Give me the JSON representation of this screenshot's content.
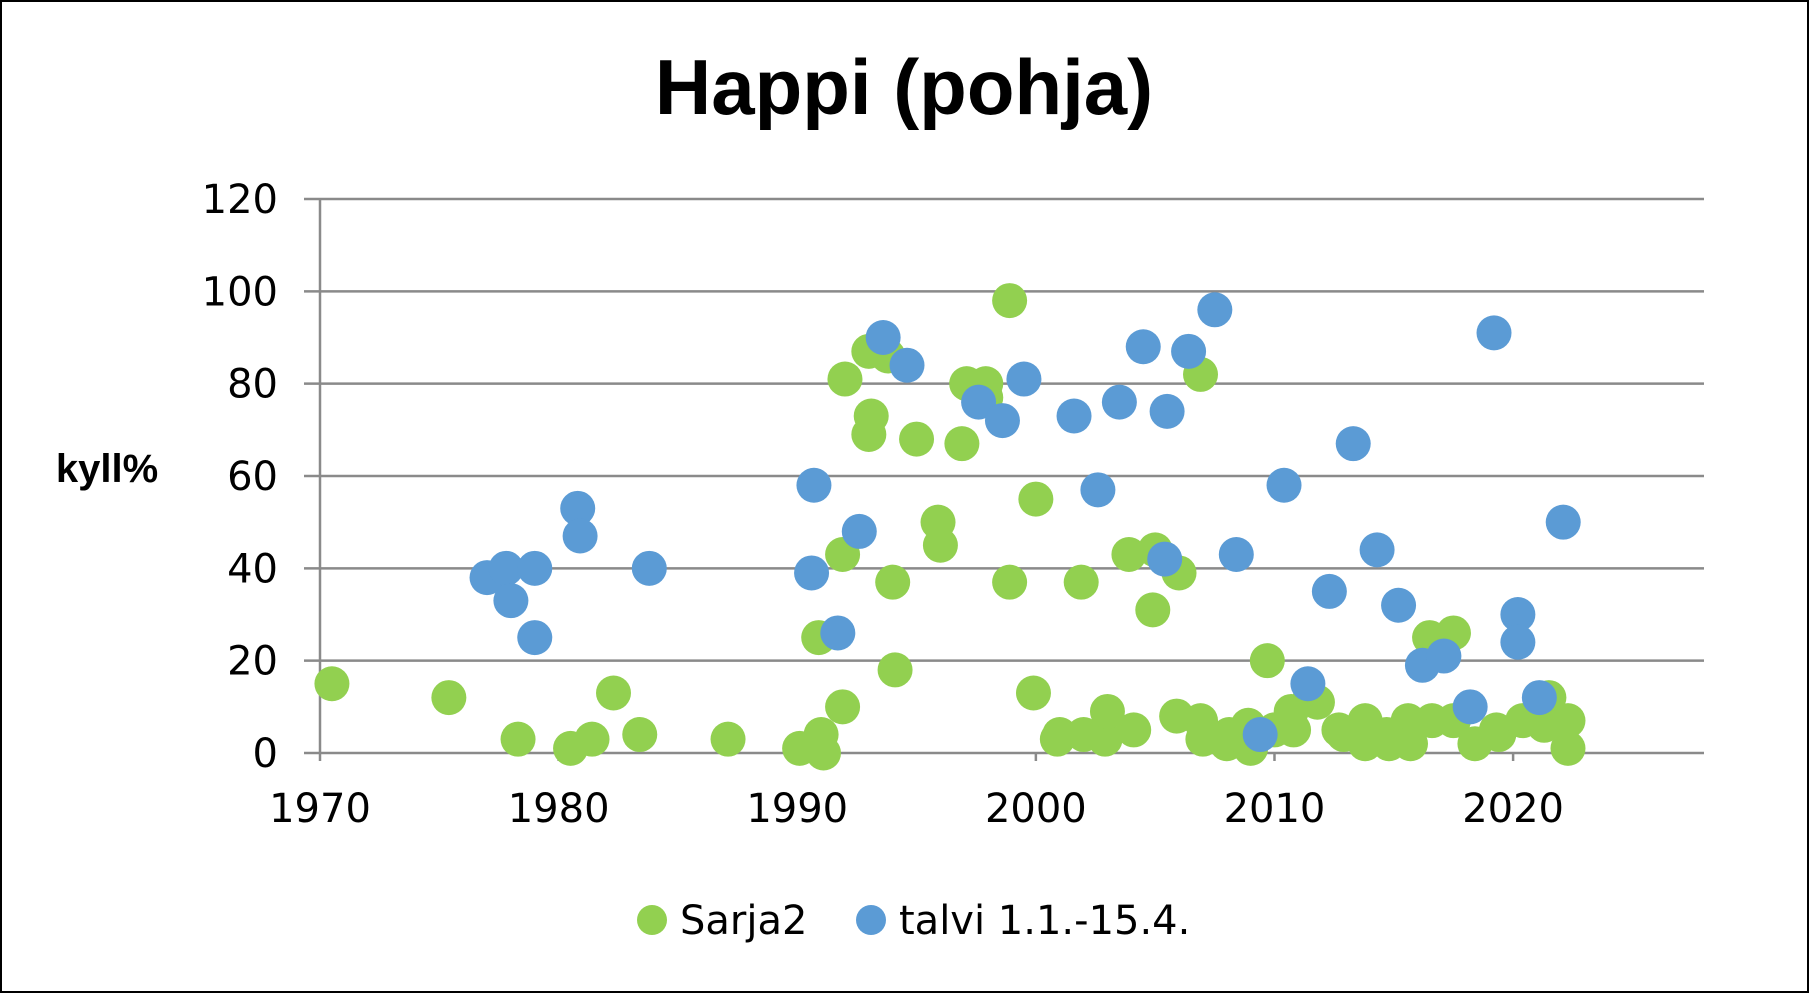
{
  "chart_data": {
    "type": "scatter",
    "title": "Happi (pohja)",
    "ylabel": "kyll%",
    "xlabel": "",
    "xlim": [
      1970,
      2028
    ],
    "ylim": [
      0,
      120
    ],
    "x_ticks": [
      1970,
      1980,
      1990,
      2000,
      2010,
      2020
    ],
    "y_ticks": [
      0,
      20,
      40,
      60,
      80,
      100,
      120
    ],
    "grid": "horizontal",
    "legend": "bottom",
    "series": [
      {
        "name": "Sarja2",
        "color": "#92d050",
        "points": [
          [
            1970.5,
            15
          ],
          [
            1975.4,
            12
          ],
          [
            1978.3,
            3
          ],
          [
            1980.5,
            1
          ],
          [
            1981.4,
            3
          ],
          [
            1982.3,
            13
          ],
          [
            1983.4,
            4
          ],
          [
            1987.1,
            3
          ],
          [
            1990.1,
            1
          ],
          [
            1991.0,
            4
          ],
          [
            1990.9,
            25
          ],
          [
            1991.1,
            0
          ],
          [
            1991.9,
            10
          ],
          [
            1992.0,
            81
          ],
          [
            1991.9,
            43
          ],
          [
            1993.0,
            87
          ],
          [
            1993.1,
            73
          ],
          [
            1993.0,
            69
          ],
          [
            1993.8,
            86
          ],
          [
            1994.0,
            37
          ],
          [
            1994.1,
            18
          ],
          [
            1995.0,
            68
          ],
          [
            1995.9,
            50
          ],
          [
            1996.0,
            45
          ],
          [
            1996.9,
            67
          ],
          [
            1997.1,
            80
          ],
          [
            1997.9,
            77
          ],
          [
            1997.9,
            80
          ],
          [
            1998.9,
            98
          ],
          [
            1998.9,
            37
          ],
          [
            1999.9,
            13
          ],
          [
            2000.0,
            55
          ],
          [
            2000.9,
            3
          ],
          [
            2001.0,
            4
          ],
          [
            2001.9,
            37
          ],
          [
            2002.0,
            4
          ],
          [
            2002.9,
            3
          ],
          [
            2003.0,
            9
          ],
          [
            2003.9,
            43
          ],
          [
            2004.1,
            5
          ],
          [
            2004.9,
            31
          ],
          [
            2005.0,
            44
          ],
          [
            2006.0,
            39
          ],
          [
            2005.9,
            8
          ],
          [
            2006.9,
            82
          ],
          [
            2006.9,
            7
          ],
          [
            2007.0,
            3
          ],
          [
            2008.0,
            2
          ],
          [
            2008.1,
            4
          ],
          [
            2008.9,
            6
          ],
          [
            2009.0,
            1
          ],
          [
            2009.7,
            20
          ],
          [
            2010.0,
            5
          ],
          [
            2010.7,
            9
          ],
          [
            2010.8,
            5
          ],
          [
            2011.5,
            12
          ],
          [
            2011.8,
            11
          ],
          [
            2012.7,
            5
          ],
          [
            2012.9,
            4
          ],
          [
            2013.8,
            7
          ],
          [
            2013.8,
            2
          ],
          [
            2014.7,
            4
          ],
          [
            2014.8,
            2
          ],
          [
            2015.6,
            7
          ],
          [
            2015.7,
            2
          ],
          [
            2016.5,
            25
          ],
          [
            2016.6,
            7
          ],
          [
            2017.5,
            26
          ],
          [
            2017.5,
            7
          ],
          [
            2018.4,
            2
          ],
          [
            2019.3,
            5
          ],
          [
            2019.4,
            4
          ],
          [
            2020.4,
            7
          ],
          [
            2021.3,
            6
          ],
          [
            2021.5,
            12
          ],
          [
            2022.3,
            7
          ],
          [
            2022.3,
            1
          ]
        ]
      },
      {
        "name": "talvi 1.1.-15.4.",
        "color": "#5b9bd5",
        "points": [
          [
            1977.0,
            38
          ],
          [
            1977.8,
            40
          ],
          [
            1978.0,
            33
          ],
          [
            1979.0,
            40
          ],
          [
            1979.0,
            25
          ],
          [
            1980.8,
            53
          ],
          [
            1980.9,
            47
          ],
          [
            1983.8,
            40
          ],
          [
            1990.7,
            58
          ],
          [
            1990.6,
            39
          ],
          [
            1991.7,
            26
          ],
          [
            1992.6,
            48
          ],
          [
            1993.6,
            90
          ],
          [
            1994.6,
            84
          ],
          [
            1997.6,
            76
          ],
          [
            1998.6,
            72
          ],
          [
            1999.5,
            81
          ],
          [
            2001.6,
            73
          ],
          [
            2002.6,
            57
          ],
          [
            2003.5,
            76
          ],
          [
            2004.5,
            88
          ],
          [
            2005.4,
            42
          ],
          [
            2005.5,
            74
          ],
          [
            2006.4,
            87
          ],
          [
            2007.5,
            96
          ],
          [
            2008.4,
            43
          ],
          [
            2009.4,
            4
          ],
          [
            2010.4,
            58
          ],
          [
            2011.4,
            15
          ],
          [
            2012.3,
            35
          ],
          [
            2013.3,
            67
          ],
          [
            2014.3,
            44
          ],
          [
            2015.2,
            32
          ],
          [
            2016.2,
            19
          ],
          [
            2017.1,
            21
          ],
          [
            2018.2,
            10
          ],
          [
            2019.2,
            91
          ],
          [
            2020.2,
            30
          ],
          [
            2020.2,
            24
          ],
          [
            2021.1,
            12
          ],
          [
            2022.1,
            50
          ]
        ]
      }
    ]
  }
}
